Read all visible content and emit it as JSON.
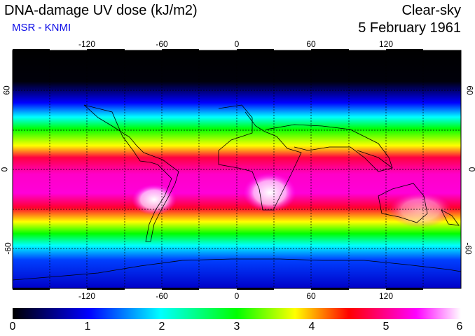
{
  "header": {
    "title": "DNA-damage UV dose (kJ/m2)",
    "source": "MSR - KNMI",
    "sky_condition": "Clear-sky",
    "date": "5 February 1961"
  },
  "map": {
    "longitude_ticks": [
      "-120",
      "-60",
      "0",
      "60",
      "120"
    ],
    "latitude_ticks": [
      "60",
      "0",
      "-60"
    ],
    "lon_range": [
      -180,
      180
    ],
    "lat_range": [
      -90,
      90
    ]
  },
  "colorbar": {
    "labels": [
      "0",
      "1",
      "2",
      "3",
      "4",
      "5",
      "6"
    ],
    "min": 0,
    "max": 6,
    "colors": [
      "#000000",
      "#0000ff",
      "#00ffff",
      "#00ff00",
      "#ffff00",
      "#ff0000",
      "#ff00ff",
      "#ffffff"
    ]
  }
}
